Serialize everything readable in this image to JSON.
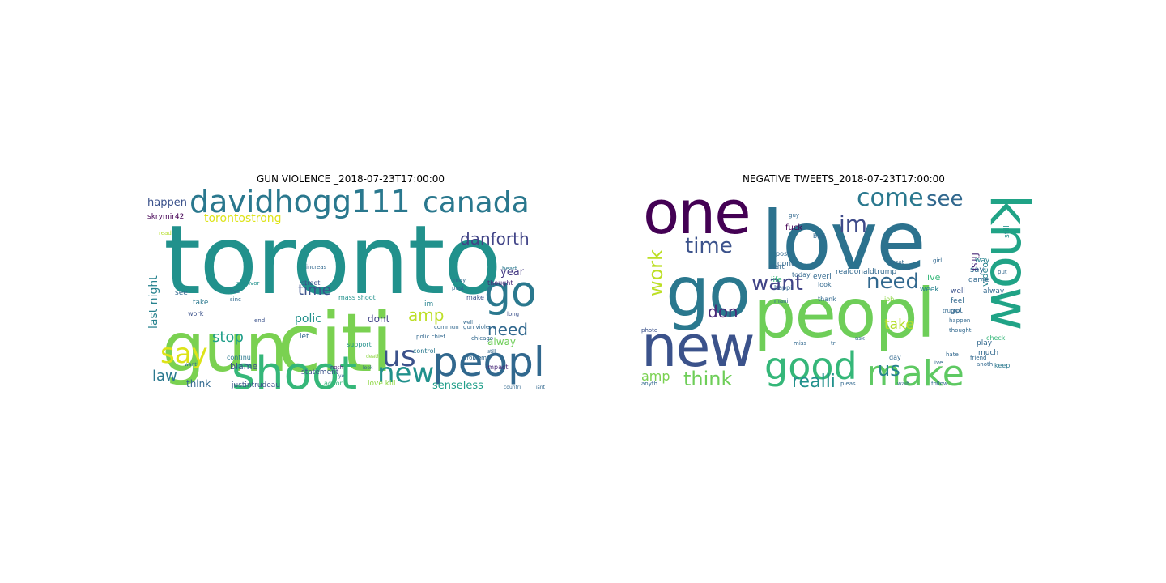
{
  "chart_data": [
    {
      "type": "wordcloud",
      "title": "GUN VIOLENCE _2018-07-23T17:00:00",
      "words": [
        {
          "text": "toronto",
          "size": 118,
          "color": "#21918c"
        },
        {
          "text": "citi",
          "size": 100,
          "color": "#7ad151"
        },
        {
          "text": "gun",
          "size": 84,
          "color": "#7ad151"
        },
        {
          "text": "shoot",
          "size": 56,
          "color": "#35b779"
        },
        {
          "text": "davidhogg111",
          "size": 38,
          "color": "#2a788e"
        },
        {
          "text": "canada",
          "size": 36,
          "color": "#2a788e"
        },
        {
          "text": "peopl",
          "size": 50,
          "color": "#31688e"
        },
        {
          "text": "go",
          "size": 52,
          "color": "#2a788e"
        },
        {
          "text": "us",
          "size": 36,
          "color": "#3b528b"
        },
        {
          "text": "new",
          "size": 34,
          "color": "#21918c"
        },
        {
          "text": "say",
          "size": 34,
          "color": "#dde318"
        },
        {
          "text": "danforth",
          "size": 20,
          "color": "#414487"
        },
        {
          "text": "need",
          "size": 20,
          "color": "#31688e"
        },
        {
          "text": "amp",
          "size": 20,
          "color": "#bddf26"
        },
        {
          "text": "law",
          "size": 18,
          "color": "#2a788e"
        },
        {
          "text": "time",
          "size": 18,
          "color": "#3b528b"
        },
        {
          "text": "stop",
          "size": 18,
          "color": "#1f9e89"
        },
        {
          "text": "torontostrong",
          "size": 14,
          "color": "#dde318"
        },
        {
          "text": "happen",
          "size": 13,
          "color": "#3b528b"
        },
        {
          "text": "last night",
          "size": 14,
          "color": "#26828e"
        },
        {
          "text": "senseless",
          "size": 13,
          "color": "#1f9e89"
        },
        {
          "text": "polic",
          "size": 14,
          "color": "#21918c"
        },
        {
          "text": "year",
          "size": 13,
          "color": "#443983"
        },
        {
          "text": "dont",
          "size": 12,
          "color": "#414487"
        },
        {
          "text": "alway",
          "size": 12,
          "color": "#6ece58"
        },
        {
          "text": "think",
          "size": 12,
          "color": "#31688e"
        },
        {
          "text": "blame",
          "size": 11,
          "color": "#3b528b"
        },
        {
          "text": "skrymir42",
          "size": 9,
          "color": "#440154"
        },
        {
          "text": "justintrudeau",
          "size": 9,
          "color": "#3b528b"
        },
        {
          "text": "statement",
          "size": 9,
          "color": "#3b528b"
        },
        {
          "text": "love kill",
          "size": 9,
          "color": "#8fd744"
        },
        {
          "text": "impact",
          "size": 8,
          "color": "#482878"
        },
        {
          "text": "support",
          "size": 8,
          "color": "#21918c"
        },
        {
          "text": "control",
          "size": 8,
          "color": "#2a788e"
        },
        {
          "text": "see",
          "size": 9,
          "color": "#31688e"
        },
        {
          "text": "take",
          "size": 9,
          "color": "#2a788e"
        },
        {
          "text": "let",
          "size": 9,
          "color": "#31688e"
        },
        {
          "text": "im",
          "size": 9,
          "color": "#26828e"
        },
        {
          "text": "make",
          "size": 8,
          "color": "#3b528b"
        },
        {
          "text": "thought",
          "size": 8,
          "color": "#482878"
        },
        {
          "text": "continu",
          "size": 8,
          "color": "#2a788e"
        },
        {
          "text": "action",
          "size": 8,
          "color": "#35b779"
        },
        {
          "text": "street",
          "size": 8,
          "color": "#3b528b"
        },
        {
          "text": "mass shoot",
          "size": 8,
          "color": "#21918c"
        },
        {
          "text": "heart",
          "size": 7,
          "color": "#2a788e"
        },
        {
          "text": "work",
          "size": 8,
          "color": "#3b528b"
        },
        {
          "text": "read",
          "size": 7,
          "color": "#b5de2b"
        },
        {
          "text": "live",
          "size": 7,
          "color": "#31688e"
        },
        {
          "text": "sinc",
          "size": 7,
          "color": "#31688e"
        },
        {
          "text": "survivor",
          "size": 7,
          "color": "#21918c"
        },
        {
          "text": "increas",
          "size": 7,
          "color": "#31688e"
        },
        {
          "text": "post",
          "size": 7,
          "color": "#31688e"
        },
        {
          "text": "end",
          "size": 7,
          "color": "#3b528b"
        },
        {
          "text": "noth",
          "size": 7,
          "color": "#482878"
        },
        {
          "text": "may",
          "size": 7,
          "color": "#31688e"
        },
        {
          "text": "long",
          "size": 7,
          "color": "#3b528b"
        },
        {
          "text": "commun",
          "size": 7,
          "color": "#31688e"
        },
        {
          "text": "gun violenc",
          "size": 7,
          "color": "#31688e"
        },
        {
          "text": "polic chief",
          "size": 7,
          "color": "#31688e"
        },
        {
          "text": "problem",
          "size": 7,
          "color": "#31688e"
        },
        {
          "text": "chicago",
          "size": 7,
          "color": "#31688e"
        },
        {
          "text": "death",
          "size": 6,
          "color": "#8fd744"
        },
        {
          "text": "look",
          "size": 6,
          "color": "#31688e"
        },
        {
          "text": "want",
          "size": 6,
          "color": "#31688e"
        },
        {
          "text": "ye",
          "size": 6,
          "color": "#31688e"
        },
        {
          "text": "countri",
          "size": 6,
          "color": "#31688e"
        },
        {
          "text": "isnt",
          "size": 6,
          "color": "#31688e"
        },
        {
          "text": "well",
          "size": 6,
          "color": "#31688e"
        },
        {
          "text": "still",
          "size": 6,
          "color": "#31688e"
        },
        {
          "text": "use",
          "size": 6,
          "color": "#31688e"
        }
      ]
    },
    {
      "type": "wordcloud",
      "title": "NEGATIVE TWEETS_2018-07-23T17:00:00",
      "words": [
        {
          "text": "love",
          "size": 100,
          "color": "#2c728e"
        },
        {
          "text": "peopl",
          "size": 84,
          "color": "#6ece58"
        },
        {
          "text": "go",
          "size": 86,
          "color": "#2a788e"
        },
        {
          "text": "one",
          "size": 74,
          "color": "#440154"
        },
        {
          "text": "new",
          "size": 70,
          "color": "#3b528b"
        },
        {
          "text": "know",
          "size": 66,
          "color": "#20a386"
        },
        {
          "text": "make",
          "size": 44,
          "color": "#5ec962"
        },
        {
          "text": "good",
          "size": 46,
          "color": "#35b779"
        },
        {
          "text": "come",
          "size": 30,
          "color": "#2a788e"
        },
        {
          "text": "see",
          "size": 26,
          "color": "#31688e"
        },
        {
          "text": "im",
          "size": 28,
          "color": "#3e4a89"
        },
        {
          "text": "time",
          "size": 26,
          "color": "#3b528b"
        },
        {
          "text": "want",
          "size": 26,
          "color": "#414487"
        },
        {
          "text": "need",
          "size": 26,
          "color": "#31688e"
        },
        {
          "text": "work",
          "size": 24,
          "color": "#bddf26"
        },
        {
          "text": "think",
          "size": 24,
          "color": "#6ece58"
        },
        {
          "text": "realli",
          "size": 22,
          "color": "#21918c"
        },
        {
          "text": "us",
          "size": 24,
          "color": "#26828e"
        },
        {
          "text": "take",
          "size": 17,
          "color": "#b5de2b"
        },
        {
          "text": "don",
          "size": 20,
          "color": "#482878"
        },
        {
          "text": "amp",
          "size": 16,
          "color": "#7ad151"
        },
        {
          "text": "first",
          "size": 12,
          "color": "#482878"
        },
        {
          "text": "video",
          "size": 11,
          "color": "#26828e"
        },
        {
          "text": "still",
          "size": 9,
          "color": "#21918c"
        },
        {
          "text": "fuck",
          "size": 10,
          "color": "#440154"
        },
        {
          "text": "dont",
          "size": 9,
          "color": "#31688e"
        },
        {
          "text": "everi",
          "size": 9,
          "color": "#31688e"
        },
        {
          "text": "realdonaldtrump",
          "size": 9,
          "color": "#31688e"
        },
        {
          "text": "way",
          "size": 9,
          "color": "#26828e"
        },
        {
          "text": "live",
          "size": 11,
          "color": "#35b779"
        },
        {
          "text": "say",
          "size": 10,
          "color": "#31688e"
        },
        {
          "text": "well",
          "size": 9,
          "color": "#3b528b"
        },
        {
          "text": "game",
          "size": 9,
          "color": "#31688e"
        },
        {
          "text": "week",
          "size": 9,
          "color": "#26828e"
        },
        {
          "text": "alway",
          "size": 9,
          "color": "#31688e"
        },
        {
          "text": "play",
          "size": 9,
          "color": "#31688e"
        },
        {
          "text": "much",
          "size": 9,
          "color": "#31688e"
        },
        {
          "text": "check",
          "size": 8,
          "color": "#35b779"
        },
        {
          "text": "keep",
          "size": 8,
          "color": "#2a788e"
        },
        {
          "text": "feel",
          "size": 9,
          "color": "#31688e"
        },
        {
          "text": "got",
          "size": 9,
          "color": "#31688e"
        },
        {
          "text": "thank",
          "size": 8,
          "color": "#31688e"
        },
        {
          "text": "look",
          "size": 8,
          "color": "#31688e"
        },
        {
          "text": "life",
          "size": 9,
          "color": "#35b779"
        },
        {
          "text": "start",
          "size": 8,
          "color": "#31688e"
        },
        {
          "text": "today",
          "size": 8,
          "color": "#31688e"
        },
        {
          "text": "post",
          "size": 8,
          "color": "#31688e"
        },
        {
          "text": "bad",
          "size": 8,
          "color": "#31688e"
        },
        {
          "text": "job",
          "size": 8,
          "color": "#8fd744"
        },
        {
          "text": "day",
          "size": 8,
          "color": "#31688e"
        },
        {
          "text": "happen",
          "size": 7,
          "color": "#31688e"
        },
        {
          "text": "friend",
          "size": 7,
          "color": "#31688e"
        },
        {
          "text": "hate",
          "size": 7,
          "color": "#31688e"
        },
        {
          "text": "anoth",
          "size": 7,
          "color": "#31688e"
        },
        {
          "text": "photo",
          "size": 7,
          "color": "#3b528b"
        },
        {
          "text": "anyth",
          "size": 7,
          "color": "#31688e"
        },
        {
          "text": "wait",
          "size": 7,
          "color": "#31688e"
        },
        {
          "text": "pleas",
          "size": 7,
          "color": "#31688e"
        },
        {
          "text": "follow",
          "size": 7,
          "color": "#31688e"
        },
        {
          "text": "trump",
          "size": 7,
          "color": "#31688e"
        },
        {
          "text": "happi",
          "size": 8,
          "color": "#31688e"
        },
        {
          "text": "mani",
          "size": 7,
          "color": "#31688e"
        },
        {
          "text": "miss",
          "size": 7,
          "color": "#31688e"
        },
        {
          "text": "great",
          "size": 7,
          "color": "#31688e"
        },
        {
          "text": "thought",
          "size": 7,
          "color": "#31688e"
        },
        {
          "text": "via",
          "size": 7,
          "color": "#31688e"
        },
        {
          "text": "put",
          "size": 7,
          "color": "#31688e"
        },
        {
          "text": "ive",
          "size": 7,
          "color": "#31688e"
        },
        {
          "text": "tri",
          "size": 7,
          "color": "#31688e"
        },
        {
          "text": "ask",
          "size": 7,
          "color": "#31688e"
        },
        {
          "text": "guy",
          "size": 7,
          "color": "#31688e"
        },
        {
          "text": "girl",
          "size": 7,
          "color": "#31688e"
        }
      ]
    }
  ]
}
